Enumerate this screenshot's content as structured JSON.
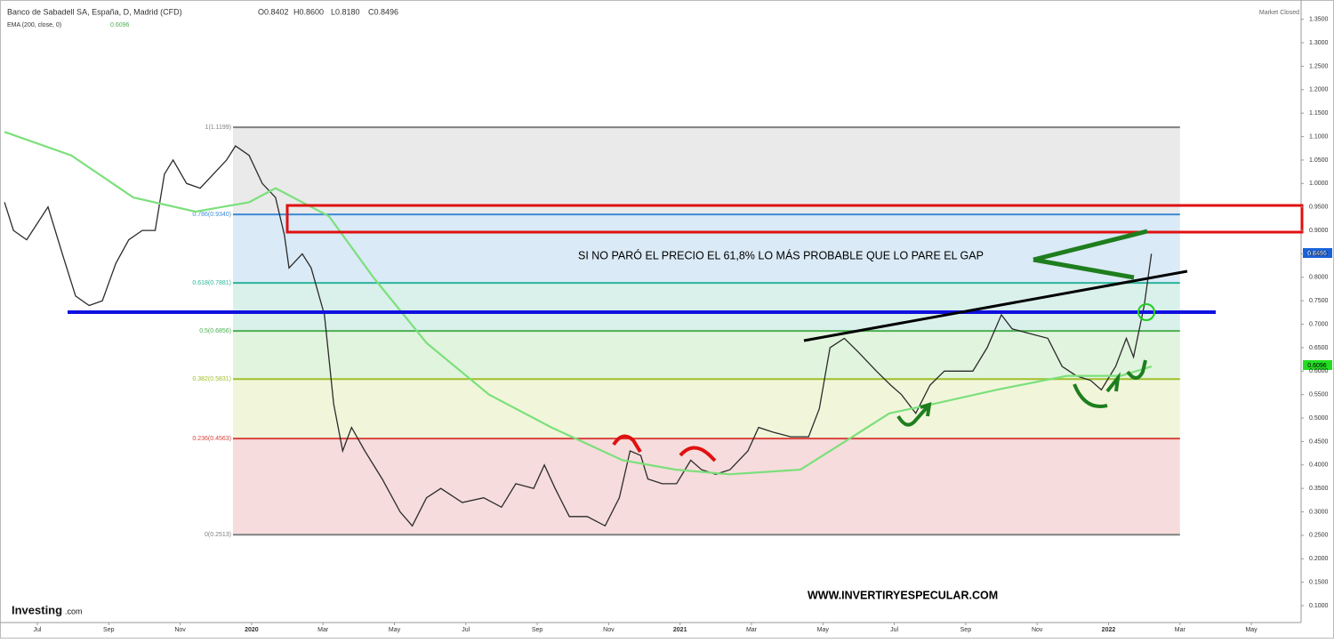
{
  "chart_data": {
    "type": "line",
    "title": "Banco de Sabadell SA, España, D, Madrid (CFD)",
    "ohlc": [
      "O0.8402",
      "H0.8600",
      "L0.8180",
      "C0.8496"
    ],
    "indicator": "EMA (200, close, 0)",
    "indicator_value": "0.6096",
    "last_price": "0.8496",
    "status": "Market Closed",
    "annotation": "SI NO PARÓ EL PRECIO EL 61,8% LO MÁS PROBABLE QUE LO PARE EL GAP",
    "website": "WWW.INVERTIRYESPECULAR.COM",
    "brand": "Investing",
    "brand_suffix": ".com",
    "xlim": [
      -1.046,
      35.393
    ],
    "ylim": [
      0.064,
      1.376
    ],
    "xticks": [
      {
        "value": 0,
        "label": "Jul"
      },
      {
        "value": 2,
        "label": "Sep"
      },
      {
        "value": 4,
        "label": "Nov"
      },
      {
        "value": 6,
        "label": "2020"
      },
      {
        "value": 8,
        "label": "Mar"
      },
      {
        "value": 10,
        "label": "May"
      },
      {
        "value": 12,
        "label": "Jul"
      },
      {
        "value": 14,
        "label": "Sep"
      },
      {
        "value": 16,
        "label": "Nov"
      },
      {
        "value": 18,
        "label": "2021"
      },
      {
        "value": 20,
        "label": "Mar"
      },
      {
        "value": 22,
        "label": "May"
      },
      {
        "value": 24,
        "label": "Jul"
      },
      {
        "value": 26,
        "label": "Sep"
      },
      {
        "value": 28,
        "label": "Nov"
      },
      {
        "value": 30,
        "label": "2022"
      },
      {
        "value": 32,
        "label": "Mar"
      },
      {
        "value": 34,
        "label": "May"
      }
    ],
    "yticks": [
      {
        "value": 0.1,
        "label": "0.1000"
      },
      {
        "value": 0.15,
        "label": "0.1500"
      },
      {
        "value": 0.2,
        "label": "0.2000"
      },
      {
        "value": 0.25,
        "label": "0.2500"
      },
      {
        "value": 0.3,
        "label": "0.3000"
      },
      {
        "value": 0.35,
        "label": "0.3500"
      },
      {
        "value": 0.4,
        "label": "0.4000"
      },
      {
        "value": 0.45,
        "label": "0.4500"
      },
      {
        "value": 0.5,
        "label": "0.5000"
      },
      {
        "value": 0.55,
        "label": "0.5500"
      },
      {
        "value": 0.6,
        "label": "0.6000"
      },
      {
        "value": 0.65,
        "label": "0.6500"
      },
      {
        "value": 0.7,
        "label": "0.7000"
      },
      {
        "value": 0.75,
        "label": "0.7500"
      },
      {
        "value": 0.8,
        "label": "0.8000"
      },
      {
        "value": 0.85,
        "label": "0.8500"
      },
      {
        "value": 0.9,
        "label": "0.9000"
      },
      {
        "value": 0.95,
        "label": "0.9500"
      },
      {
        "value": 1.0,
        "label": "1.0000"
      },
      {
        "value": 1.05,
        "label": "1.0500"
      },
      {
        "value": 1.1,
        "label": "1.1000"
      },
      {
        "value": 1.15,
        "label": "1.1500"
      },
      {
        "value": 1.2,
        "label": "1.2000"
      },
      {
        "value": 1.25,
        "label": "1.2500"
      },
      {
        "value": 1.3,
        "label": "1.3000"
      },
      {
        "value": 1.35,
        "label": "1.3500"
      }
    ],
    "fib_range": [
      5.48,
      32.0
    ],
    "fib_levels": [
      {
        "value": 1.1199,
        "label": "1(1.1199)",
        "color": "#808080"
      },
      {
        "value": 0.934,
        "label": "0.786(0.9340)",
        "color": "#3d8bd6"
      },
      {
        "value": 0.7881,
        "label": "0.618(0.7881)",
        "color": "#2ab59a"
      },
      {
        "value": 0.6856,
        "label": "0.5(0.6856)",
        "color": "#4caf50"
      },
      {
        "value": 0.5831,
        "label": "0.382(0.5831)",
        "color": "#9fbf2a"
      },
      {
        "value": 0.4563,
        "label": "0.236(0.4563)",
        "color": "#d9433b"
      },
      {
        "value": 0.2513,
        "label": "0(0.2513)",
        "color": "#808080"
      }
    ],
    "fib_band_colors": [
      "#e6e6e6",
      "#d3e6f5",
      "#d2efe6",
      "#dcf2d8",
      "#eef5d5",
      "#f5d6d6"
    ],
    "series": [
      {
        "color": "#2b2b2b",
        "x": [
          -0.92,
          -0.67,
          -0.3,
          0.3,
          0.7,
          1.07,
          1.45,
          1.82,
          2.2,
          2.56,
          2.94,
          3.3,
          3.56,
          3.8,
          4.18,
          4.56,
          4.93,
          5.3,
          5.55,
          5.93,
          6.3,
          6.67,
          6.92,
          7.05,
          7.42,
          7.67,
          8.04,
          8.3,
          8.55,
          8.8,
          9.17,
          9.66,
          10.16,
          10.5,
          10.9,
          11.3,
          11.9,
          12.5,
          13.0,
          13.4,
          13.9,
          14.2,
          14.5,
          14.9,
          15.4,
          15.9,
          16.3,
          16.6,
          16.9,
          17.1,
          17.5,
          17.9,
          18.3,
          18.6,
          19.0,
          19.4,
          19.9,
          20.2,
          20.6,
          21.1,
          21.6,
          21.9,
          22.2,
          22.6,
          23.0,
          23.5,
          23.9,
          24.2,
          24.6,
          25.0,
          25.4,
          25.7,
          26.2,
          26.6,
          27.0,
          27.3,
          27.8,
          28.3,
          28.7,
          29.1,
          29.5,
          29.8,
          30.2,
          30.5,
          30.7,
          31.0,
          31.2
        ],
        "values": [
          0.96,
          0.9,
          0.88,
          0.95,
          0.85,
          0.76,
          0.74,
          0.75,
          0.83,
          0.88,
          0.9,
          0.9,
          1.02,
          1.05,
          1.0,
          0.99,
          1.02,
          1.05,
          1.08,
          1.06,
          1.0,
          0.97,
          0.89,
          0.82,
          0.85,
          0.82,
          0.72,
          0.53,
          0.43,
          0.48,
          0.43,
          0.37,
          0.3,
          0.27,
          0.33,
          0.35,
          0.32,
          0.33,
          0.31,
          0.36,
          0.35,
          0.4,
          0.35,
          0.29,
          0.29,
          0.27,
          0.33,
          0.43,
          0.42,
          0.37,
          0.36,
          0.36,
          0.41,
          0.39,
          0.38,
          0.39,
          0.43,
          0.48,
          0.47,
          0.46,
          0.46,
          0.52,
          0.65,
          0.67,
          0.64,
          0.6,
          0.57,
          0.55,
          0.51,
          0.57,
          0.6,
          0.6,
          0.6,
          0.65,
          0.72,
          0.69,
          0.68,
          0.67,
          0.61,
          0.59,
          0.58,
          0.56,
          0.61,
          0.67,
          0.63,
          0.74,
          0.85
        ]
      },
      {
        "color": "#7be07b",
        "x": [
          -0.92,
          0.95,
          2.69,
          4.43,
          5.93,
          6.67,
          8.17,
          9.41,
          10.9,
          12.65,
          14.4,
          16.39,
          17.88,
          19.38,
          21.37,
          22.62,
          23.86,
          25.1,
          26.85,
          28.84,
          30.34,
          31.21
        ],
        "values": [
          1.11,
          1.06,
          0.97,
          0.94,
          0.96,
          0.99,
          0.93,
          0.8,
          0.66,
          0.55,
          0.48,
          0.41,
          0.39,
          0.38,
          0.39,
          0.45,
          0.51,
          0.53,
          0.56,
          0.59,
          0.59,
          0.61
        ]
      }
    ]
  }
}
